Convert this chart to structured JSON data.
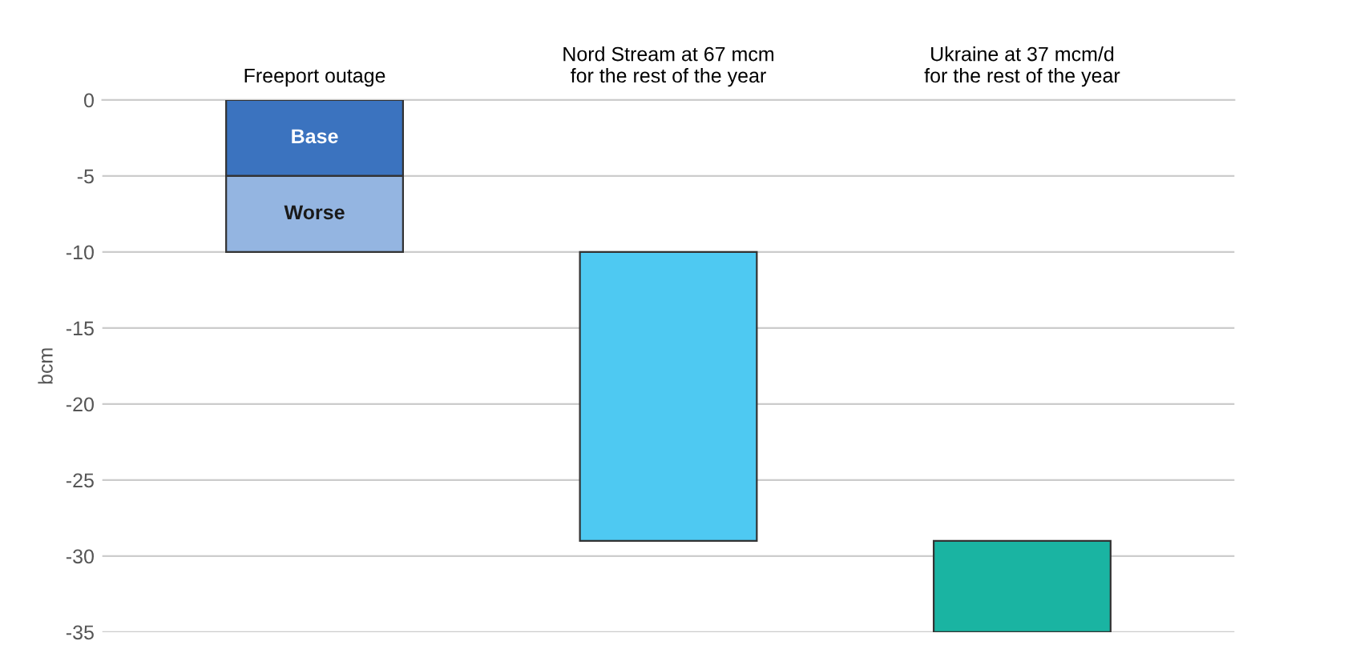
{
  "chart_data": {
    "type": "bar",
    "ylabel": "bcm",
    "categories": [
      "Freeport outage",
      "Nord Stream at 67 mcm\nfor the rest of the year",
      "Ukraine at 37 mcm/d\nfor the rest of the year"
    ],
    "series": [
      {
        "name": "Base",
        "color": "#3b73bf",
        "values": [
          -5,
          null,
          null
        ],
        "base": [
          0,
          null,
          null
        ]
      },
      {
        "name": "Worse",
        "color": "#94b5e1",
        "values": [
          -5,
          null,
          null
        ],
        "base": [
          -5,
          null,
          null
        ]
      },
      {
        "colors": [
          null,
          "#4ec9f2",
          "#1ab4a2"
        ],
        "values": [
          null,
          -19,
          -6
        ],
        "base": [
          null,
          -10,
          -29
        ]
      }
    ],
    "ylim": [
      -35,
      0
    ],
    "yticks": [
      0,
      -5,
      -10,
      -15,
      -20,
      -25,
      -30,
      -35
    ],
    "grid": "y",
    "legend": false
  }
}
